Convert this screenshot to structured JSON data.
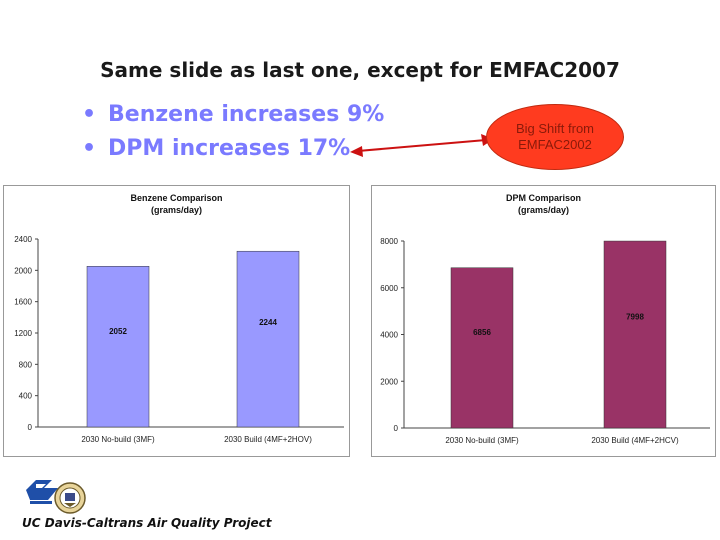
{
  "slide": {
    "title": "Same slide as last one, except for EMFAC2007",
    "bullets": [
      "Benzene increases 9%",
      "DPM increases 17%"
    ],
    "callout": "Big Shift from EMFAC2002",
    "footer": "UC Davis-Caltrans Air Quality Project",
    "colors": {
      "bullet_text": "#7a7aff",
      "callout_fill": "#ff3b1f",
      "arrow": "#cc1111"
    },
    "logos": [
      "caltrans-logo",
      "uc-davis-seal"
    ]
  },
  "chart_data": [
    {
      "type": "bar",
      "title": "Benzene Comparison",
      "subtitle": "(grams/day)",
      "categories": [
        "2030 No-build (3MF)",
        "2030 Build (4MF+2HOV)"
      ],
      "values": [
        2052,
        2244
      ],
      "value_labels": [
        "2052",
        "2244"
      ],
      "ylim": [
        0,
        2400
      ],
      "yticks": [
        0,
        400,
        800,
        1200,
        1600,
        2000,
        2400
      ],
      "ytick_labels": [
        "0",
        "400",
        "800",
        "1200",
        "1600",
        "2000",
        "2400"
      ],
      "bar_color": "#9999ff",
      "grid": false
    },
    {
      "type": "bar",
      "title": "DPM Comparison",
      "subtitle": "(grams/day)",
      "categories": [
        "2030 No-build (3MF)",
        "2030 Build (4MF+2HCV)"
      ],
      "values": [
        6856,
        7998
      ],
      "value_labels": [
        "6856",
        "7998"
      ],
      "ylim": [
        0,
        8000
      ],
      "yticks": [
        0,
        2000,
        4000,
        6000,
        8000
      ],
      "ytick_labels": [
        "0",
        "2000",
        "4000",
        "6000",
        "8000"
      ],
      "bar_color": "#993366",
      "grid": false
    }
  ]
}
